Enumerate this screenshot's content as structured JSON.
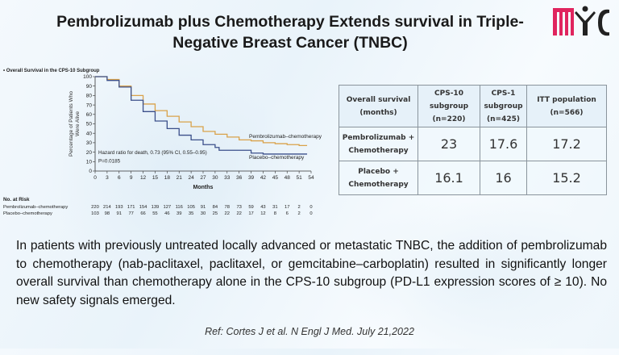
{
  "title": "Pembrolizumab plus Chemotherapy Extends survival in Triple-Negative Breast Cancer (TNBC)",
  "logo_text": "MIC",
  "chart_data": {
    "type": "line",
    "title": "Overall Survival in the CPS-10 Subgroup",
    "xlabel": "Months",
    "ylabel": "Percentage of Patients Who Were Alive",
    "xlim": [
      0,
      54
    ],
    "ylim": [
      0,
      100
    ],
    "xticks": [
      0,
      3,
      6,
      9,
      12,
      15,
      18,
      21,
      24,
      27,
      30,
      33,
      36,
      39,
      42,
      45,
      48,
      51,
      54
    ],
    "yticks": [
      0,
      10,
      20,
      30,
      40,
      50,
      60,
      70,
      80,
      90,
      100
    ],
    "grid": false,
    "annotation": [
      "Hazard ratio for death, 0.73 (95% CI, 0.55–0.95)",
      "P=0.0185"
    ],
    "series": [
      {
        "name": "Pembrolizumab–chemotherapy",
        "color": "#d9a24a",
        "x": [
          0,
          3,
          6,
          9,
          12,
          15,
          18,
          21,
          24,
          27,
          30,
          33,
          36,
          39,
          42,
          45,
          48,
          51,
          53
        ],
        "y": [
          100,
          97,
          90,
          80,
          71,
          64,
          58,
          52,
          47,
          42,
          39,
          36,
          33,
          32,
          30,
          29,
          28,
          27,
          27
        ]
      },
      {
        "name": "Placebo–chemotherapy",
        "color": "#3b4f8a",
        "x": [
          0,
          3,
          6,
          9,
          12,
          15,
          18,
          21,
          24,
          27,
          30,
          31,
          36,
          39,
          42,
          53
        ],
        "y": [
          100,
          96,
          89,
          75,
          63,
          53,
          45,
          38,
          33,
          28,
          25,
          22,
          22,
          19,
          18,
          18
        ]
      }
    ],
    "risk_table": {
      "label": "No. at Risk",
      "rows": [
        {
          "name": "Pembrolizumab–chemotherapy",
          "values": [
            "220",
            "214",
            "193",
            "171",
            "154",
            "139",
            "127",
            "116",
            "105",
            "91",
            "84",
            "78",
            "73",
            "59",
            "43",
            "31",
            "17",
            "2",
            "0"
          ]
        },
        {
          "name": "Placebo–chemotherapy",
          "values": [
            "103",
            "98",
            "91",
            "77",
            "66",
            "55",
            "46",
            "39",
            "35",
            "30",
            "25",
            "22",
            "22",
            "17",
            "12",
            "8",
            "6",
            "2",
            "0"
          ]
        }
      ]
    }
  },
  "table": {
    "headers": [
      "Overall survival (months)",
      "CPS-10 subgroup",
      "(n=220)",
      "CPS-1 subgroup",
      "(n=425)",
      "ITT population",
      "(n=566)"
    ],
    "rows": [
      {
        "label": "Pembrolizumab + Chemotherapy",
        "values": [
          "23",
          "17.6",
          "17.2"
        ]
      },
      {
        "label": "Placebo + Chemotherapy",
        "values": [
          "16.1",
          "16",
          "15.2"
        ]
      }
    ]
  },
  "paragraph": "In patients with previously untreated locally advanced or metastatic TNBC, the addition of pembrolizumab to chemotherapy (nab-paclitaxel, paclitaxel, or gemcitabine–carboplatin) resulted in significantly longer overall survival than chemotherapy alone in the CPS-10 subgroup (PD-L1 expression scores of ≥ 10). No new safety signals emerged.",
  "reference": {
    "prefix": "Ref: Cortes J et al. ",
    "journal": "N Engl J Med. July 21,2022"
  }
}
